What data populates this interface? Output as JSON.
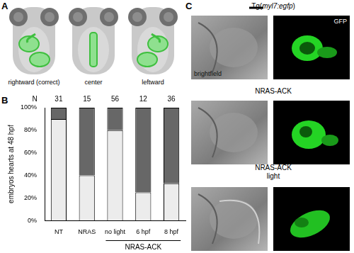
{
  "panel_labels": [
    "A",
    "B",
    "C"
  ],
  "panel_a": {
    "labels": [
      "rightward (correct)",
      "center",
      "leftward"
    ]
  },
  "chart_data": {
    "type": "bar",
    "stacked": true,
    "grid": false,
    "categories": [
      "NT",
      "NRAS",
      "no light",
      "6 hpf",
      "8 hpf"
    ],
    "series": [
      {
        "color": "#ececec",
        "values": [
          90,
          40,
          80,
          25,
          33
        ]
      },
      {
        "color": "#676767",
        "values": [
          10,
          60,
          20,
          75,
          67
        ]
      }
    ],
    "ylim": [
      0,
      100
    ],
    "yticks": [
      {
        "value": 0,
        "label": "0%"
      },
      {
        "value": 20,
        "label": "20%"
      },
      {
        "value": 40,
        "label": "40%"
      },
      {
        "value": 60,
        "label": "60%"
      },
      {
        "value": 80,
        "label": "80%"
      },
      {
        "value": 100,
        "label": "100%"
      }
    ],
    "y_label": "embryos hearts at 48 hpf",
    "counts_label": "N",
    "counts": [
      31,
      15,
      56,
      12,
      36
    ],
    "group": {
      "label": "NRAS-ACK",
      "categories": [
        "no light",
        "6 hpf",
        "8 hpf"
      ]
    }
  },
  "panel_c": {
    "rows": [
      {
        "label": [
          "Tg(myl7:egfp)"
        ],
        "left": "brightfield",
        "right": "GFP"
      },
      {
        "label": [
          "NRAS-ACK"
        ]
      },
      {
        "label": [
          "NRAS-ACK",
          "light"
        ]
      }
    ]
  }
}
